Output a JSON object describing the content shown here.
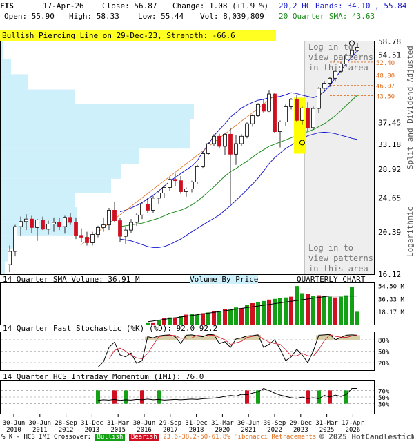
{
  "header": {
    "symbol": "FTS",
    "date": "17-Apr-26",
    "close": "Close: 56.87",
    "change": "Change: 1.08 (+1.9 %)",
    "open": "Open: 55.90",
    "high": "High: 58.33",
    "low": "Low: 55.44",
    "volume": "Vol: 8,039,809",
    "hc_bands": "20,2 HC Bands: 34.10 , 55.84",
    "sma": "20 Quarter SMA: 43.63"
  },
  "alert": "Bullish Piercing Line on 29-Dec-23, Strength: -66.6",
  "side_labels": {
    "adjusted": "Split and Dividend Adjusted",
    "log": "Logarithmic"
  },
  "login_text": "Log in to\nview patterns\nin this area",
  "price_axis": [
    {
      "v": 58.78,
      "t": "58.78"
    },
    {
      "v": 54.51,
      "t": "54.51"
    },
    {
      "v": 37.45,
      "t": "37.45"
    },
    {
      "v": 33.18,
      "t": "33.18"
    },
    {
      "v": 28.92,
      "t": "28.92"
    },
    {
      "v": 24.65,
      "t": "24.65"
    },
    {
      "v": 20.39,
      "t": "20.39"
    },
    {
      "v": 16.12,
      "t": "16.12"
    }
  ],
  "fib_levels": [
    {
      "v": 52.4,
      "t": "52.40"
    },
    {
      "v": 48.8,
      "t": "48.80"
    },
    {
      "v": 46.07,
      "t": "46.07"
    },
    {
      "v": 43.5,
      "t": "43.50"
    }
  ],
  "volume_panel": {
    "title": "14 Quarter SMA Volume: 36.91 M",
    "vbp": "Volume By Price",
    "qc": "QUARTERLY CHART",
    "axis": [
      {
        "v": 54.5,
        "t": "54.50 M"
      },
      {
        "v": 36.33,
        "t": "36.33 M"
      },
      {
        "v": 18.17,
        "t": "18.17 M"
      }
    ]
  },
  "stoch_panel": {
    "title": "14 Quarter Fast Stochastic (%K) (%D): 92.0  92.2",
    "axis": [
      {
        "v": 80,
        "t": "80%"
      },
      {
        "v": 50,
        "t": "50%"
      },
      {
        "v": 20,
        "t": "20%"
      }
    ]
  },
  "imi_panel": {
    "title": "14 Quarter HCS Intraday Momentum (IMI): 76.0",
    "axis": [
      {
        "v": 70,
        "t": "70%"
      },
      {
        "v": 50,
        "t": "50%"
      },
      {
        "v": 30,
        "t": "30%"
      }
    ]
  },
  "date_axis": [
    {
      "a": "30-Jun",
      "b": "2010"
    },
    {
      "a": "30-Jun",
      "b": "2011"
    },
    {
      "a": "28-Sep",
      "b": "2012"
    },
    {
      "a": "31-Dec",
      "b": "2013"
    },
    {
      "a": "31-Mar",
      "b": "2015"
    },
    {
      "a": "30-Jun",
      "b": "2016"
    },
    {
      "a": "29-Sep",
      "b": "2017"
    },
    {
      "a": "31-Dec",
      "b": "2018"
    },
    {
      "a": "31-Mar",
      "b": "2020"
    },
    {
      "a": "30-Jun",
      "b": "2021"
    },
    {
      "a": "30-Sep",
      "b": "2022"
    },
    {
      "a": "29-Dec",
      "b": "2023"
    },
    {
      "a": "31-Mar",
      "b": "2025"
    },
    {
      "a": "17-Apr",
      "b": "2026"
    }
  ],
  "footer": {
    "legend_prefix": "% K - HCS IMI Crossover:",
    "bullish": "Bullish",
    "bearish": "Bearish",
    "fib": "23.6-38.2-50-61.8% Fibonacci Retracements",
    "brand": "© 2025 HotCandlestick.com"
  },
  "colors": {
    "bull": "#14a014",
    "bear": "#d01020",
    "band": "#1a1acc",
    "sma": "#1a8a1a",
    "fib": "#e07020",
    "vbp": "#cdf0fa",
    "highlight": "#ffff00"
  },
  "chart_data": {
    "type": "candlestick",
    "scale": "log",
    "ylim": [
      16.12,
      58.78
    ],
    "quarters": 64,
    "candles": [
      [
        17.0,
        18.9,
        16.3,
        18.3
      ],
      [
        18.3,
        21.2,
        17.8,
        21.0
      ],
      [
        21.0,
        22.2,
        19.9,
        21.6
      ],
      [
        21.6,
        22.5,
        20.6,
        21.9
      ],
      [
        21.9,
        22.3,
        20.3,
        20.9
      ],
      [
        20.9,
        21.9,
        19.4,
        21.8
      ],
      [
        21.8,
        22.2,
        20.6,
        20.7
      ],
      [
        20.7,
        21.7,
        20.1,
        21.3
      ],
      [
        21.3,
        22.1,
        20.4,
        21.5
      ],
      [
        21.5,
        22.0,
        20.6,
        21.0
      ],
      [
        21.0,
        22.3,
        20.2,
        22.1
      ],
      [
        22.1,
        22.6,
        21.2,
        21.5
      ],
      [
        21.5,
        22.1,
        19.6,
        20.0
      ],
      [
        20.0,
        20.8,
        19.3,
        19.8
      ],
      [
        19.8,
        20.4,
        18.9,
        19.2
      ],
      [
        19.2,
        20.4,
        18.9,
        20.1
      ],
      [
        20.1,
        21.1,
        19.8,
        20.9
      ],
      [
        20.9,
        22.1,
        20.4,
        21.2
      ],
      [
        21.2,
        23.3,
        20.6,
        23.0
      ],
      [
        23.0,
        24.1,
        21.5,
        21.7
      ],
      [
        21.7,
        22.0,
        19.3,
        19.9
      ],
      [
        19.9,
        21.0,
        19.1,
        20.6
      ],
      [
        20.6,
        21.9,
        20.3,
        21.5
      ],
      [
        21.5,
        22.6,
        21.1,
        22.4
      ],
      [
        22.4,
        24.0,
        21.9,
        23.8
      ],
      [
        23.8,
        24.6,
        22.6,
        23.0
      ],
      [
        23.0,
        24.9,
        22.6,
        24.6
      ],
      [
        24.6,
        25.6,
        23.8,
        25.3
      ],
      [
        25.3,
        26.4,
        24.6,
        26.1
      ],
      [
        26.1,
        27.6,
        25.6,
        27.3
      ],
      [
        27.3,
        28.2,
        26.3,
        27.1
      ],
      [
        27.1,
        27.8,
        25.2,
        25.5
      ],
      [
        25.5,
        26.1,
        24.8,
        25.9
      ],
      [
        25.9,
        27.1,
        25.4,
        26.9
      ],
      [
        26.9,
        29.6,
        26.6,
        29.3
      ],
      [
        29.3,
        31.8,
        29.1,
        31.5
      ],
      [
        31.5,
        33.6,
        31.3,
        33.3
      ],
      [
        33.3,
        35.1,
        32.8,
        34.7
      ],
      [
        34.7,
        35.2,
        32.4,
        32.8
      ],
      [
        32.8,
        35.3,
        31.3,
        35.1
      ],
      [
        35.1,
        36.4,
        23.8,
        31.4
      ],
      [
        31.4,
        34.9,
        29.6,
        33.3
      ],
      [
        33.3,
        35.1,
        32.8,
        34.7
      ],
      [
        34.7,
        37.5,
        34.3,
        37.2
      ],
      [
        37.2,
        39.2,
        36.6,
        38.9
      ],
      [
        38.9,
        41.7,
        38.6,
        41.4
      ],
      [
        41.4,
        42.6,
        39.6,
        39.9
      ],
      [
        39.9,
        44.9,
        39.7,
        43.9
      ],
      [
        43.9,
        44.1,
        35.3,
        35.6
      ],
      [
        35.6,
        37.9,
        32.6,
        37.6
      ],
      [
        37.6,
        41.4,
        36.7,
        40.9
      ],
      [
        40.9,
        42.9,
        40.3,
        42.6
      ],
      [
        42.6,
        43.6,
        37.6,
        37.9
      ],
      [
        37.9,
        40.9,
        37.0,
        40.6
      ],
      [
        40.6,
        41.9,
        35.8,
        36.4
      ],
      [
        36.4,
        40.9,
        36.0,
        40.5
      ],
      [
        40.5,
        45.6,
        39.5,
        45.3
      ],
      [
        45.3,
        47.1,
        44.6,
        46.6
      ],
      [
        46.6,
        48.2,
        45.6,
        47.9
      ],
      [
        47.9,
        50.1,
        47.0,
        49.8
      ],
      [
        49.8,
        52.3,
        49.3,
        51.9
      ],
      [
        51.9,
        54.9,
        51.0,
        54.5
      ],
      [
        54.5,
        57.3,
        53.7,
        55.9
      ],
      [
        55.9,
        58.3,
        55.4,
        56.9
      ]
    ],
    "volume_bars": [
      [
        3,
        "g"
      ],
      [
        3,
        "r"
      ],
      [
        6,
        "g"
      ],
      [
        9,
        "r"
      ],
      [
        10,
        "g"
      ],
      [
        10,
        "r"
      ],
      [
        12,
        "g"
      ],
      [
        14,
        "r"
      ],
      [
        15,
        "g"
      ],
      [
        14,
        "g"
      ],
      [
        16,
        "r"
      ],
      [
        17,
        "g"
      ],
      [
        19,
        "r"
      ],
      [
        18,
        "g"
      ],
      [
        22,
        "r"
      ],
      [
        21,
        "g"
      ],
      [
        24,
        "g"
      ],
      [
        23,
        "r"
      ],
      [
        28,
        "g"
      ],
      [
        30,
        "r"
      ],
      [
        31,
        "g"
      ],
      [
        33,
        "g"
      ],
      [
        35,
        "r"
      ],
      [
        36,
        "g"
      ],
      [
        37,
        "g"
      ],
      [
        38,
        "g"
      ],
      [
        39,
        "r"
      ],
      [
        54,
        "g"
      ],
      [
        44,
        "g"
      ],
      [
        43,
        "r"
      ],
      [
        40,
        "g"
      ],
      [
        41,
        "r"
      ],
      [
        40,
        "g"
      ],
      [
        39,
        "g"
      ],
      [
        38,
        "r"
      ],
      [
        39,
        "g"
      ],
      [
        41,
        "g"
      ],
      [
        53,
        "g"
      ],
      [
        18,
        "g"
      ]
    ],
    "volume_start_index": 25,
    "stoch_k": [
      null,
      null,
      null,
      null,
      null,
      null,
      null,
      null,
      null,
      null,
      null,
      null,
      null,
      null,
      null,
      null,
      8,
      22,
      60,
      74,
      40,
      35,
      45,
      18,
      25,
      88,
      85,
      90,
      92,
      93,
      88,
      70,
      92,
      93,
      90,
      88,
      94,
      93,
      70,
      75,
      60,
      82,
      85,
      90,
      91,
      93,
      60,
      68,
      80,
      55,
      25,
      35,
      55,
      40,
      20,
      50,
      92,
      93,
      94,
      80,
      86,
      92,
      93,
      92
    ],
    "stoch_d": [
      null,
      null,
      null,
      null,
      null,
      null,
      null,
      null,
      null,
      null,
      null,
      null,
      null,
      null,
      null,
      null,
      null,
      null,
      30,
      52,
      58,
      50,
      40,
      32,
      30,
      44,
      66,
      88,
      90,
      92,
      91,
      84,
      84,
      85,
      92,
      90,
      91,
      92,
      86,
      80,
      68,
      72,
      76,
      86,
      89,
      91,
      81,
      74,
      70,
      68,
      54,
      38,
      38,
      44,
      38,
      37,
      54,
      78,
      93,
      89,
      87,
      86,
      90,
      92
    ],
    "imi": [
      null,
      null,
      null,
      null,
      null,
      null,
      null,
      null,
      null,
      null,
      null,
      null,
      null,
      null,
      null,
      null,
      40,
      42,
      41,
      43,
      40,
      42,
      41,
      43,
      42,
      44,
      42,
      43,
      41,
      42,
      43,
      42,
      43,
      44,
      43,
      45,
      46,
      47,
      49,
      52,
      55,
      53,
      58,
      57,
      62,
      66,
      76,
      70,
      62,
      56,
      52,
      48,
      46,
      50,
      45,
      48,
      45,
      55,
      50,
      56,
      52,
      58,
      76,
      76
    ],
    "imi_markers": [
      [
        16,
        "g"
      ],
      [
        19,
        "r"
      ],
      [
        21,
        "g"
      ],
      [
        24,
        "r"
      ],
      [
        27,
        "g"
      ],
      [
        43,
        "r"
      ],
      [
        45,
        "g"
      ],
      [
        54,
        "r"
      ],
      [
        56,
        "g"
      ],
      [
        58,
        "r"
      ],
      [
        61,
        "g"
      ]
    ],
    "hc_upper": [
      null,
      null,
      null,
      null,
      null,
      null,
      null,
      null,
      null,
      null,
      null,
      null,
      null,
      null,
      null,
      null,
      null,
      null,
      null,
      null,
      22.8,
      23.0,
      23.3,
      23.6,
      24.0,
      24.5,
      25.0,
      25.6,
      26.3,
      27.0,
      27.6,
      28.2,
      28.8,
      29.4,
      30.3,
      31.8,
      33.2,
      34.8,
      36.0,
      37.2,
      38.6,
      39.6,
      40.6,
      41.3,
      41.9,
      42.4,
      42.6,
      43.0,
      43.1,
      43.3,
      43.7,
      44.2,
      44.0,
      43.6,
      43.3,
      43.0,
      43.5,
      44.5,
      46.0,
      48.0,
      50.0,
      52.0,
      54.0,
      55.8
    ],
    "hc_lower": [
      null,
      null,
      null,
      null,
      null,
      null,
      null,
      null,
      null,
      null,
      null,
      null,
      null,
      null,
      null,
      null,
      null,
      null,
      null,
      null,
      19.6,
      19.5,
      19.4,
      19.2,
      19.0,
      18.8,
      18.7,
      18.7,
      18.8,
      19.0,
      19.3,
      19.6,
      20.0,
      20.4,
      20.8,
      21.2,
      21.6,
      22.0,
      22.4,
      23.0,
      23.6,
      24.3,
      25.0,
      25.8,
      26.6,
      27.5,
      28.6,
      29.8,
      30.8,
      31.6,
      32.4,
      33.0,
      33.6,
      34.2,
      34.8,
      35.1,
      35.4,
      35.5,
      35.4,
      35.2,
      34.9,
      34.6,
      34.3,
      34.1
    ],
    "sma20": [
      null,
      null,
      null,
      null,
      null,
      null,
      null,
      null,
      null,
      null,
      null,
      null,
      null,
      null,
      null,
      null,
      null,
      null,
      null,
      null,
      21.0,
      21.1,
      21.2,
      21.3,
      21.4,
      21.6,
      21.8,
      22.0,
      22.3,
      22.6,
      22.8,
      23.0,
      23.3,
      23.7,
      24.2,
      24.8,
      25.5,
      26.2,
      27.0,
      27.8,
      28.5,
      29.0,
      29.6,
      30.2,
      30.9,
      31.6,
      32.2,
      32.8,
      33.2,
      33.6,
      34.0,
      34.4,
      34.8,
      35.2,
      35.6,
      36.0,
      36.6,
      37.2,
      38.0,
      38.9,
      40.0,
      41.2,
      42.4,
      43.6
    ],
    "vbp": [
      [
        16.12,
        17.3,
        6
      ],
      [
        17.3,
        18.6,
        10
      ],
      [
        18.6,
        20.0,
        18
      ],
      [
        20.0,
        21.6,
        108
      ],
      [
        21.6,
        23.4,
        110
      ],
      [
        23.4,
        25.3,
        108
      ],
      [
        25.3,
        27.4,
        160
      ],
      [
        27.4,
        29.8,
        175
      ],
      [
        29.8,
        32.4,
        200
      ],
      [
        32.4,
        35.2,
        275
      ],
      [
        35.2,
        38.2,
        275
      ],
      [
        38.2,
        41.5,
        280
      ],
      [
        41.5,
        45.0,
        108
      ],
      [
        45.0,
        49.0,
        40
      ],
      [
        49.0,
        53.3,
        15
      ],
      [
        53.3,
        58.78,
        4
      ]
    ],
    "highlight_candle": 53
  }
}
